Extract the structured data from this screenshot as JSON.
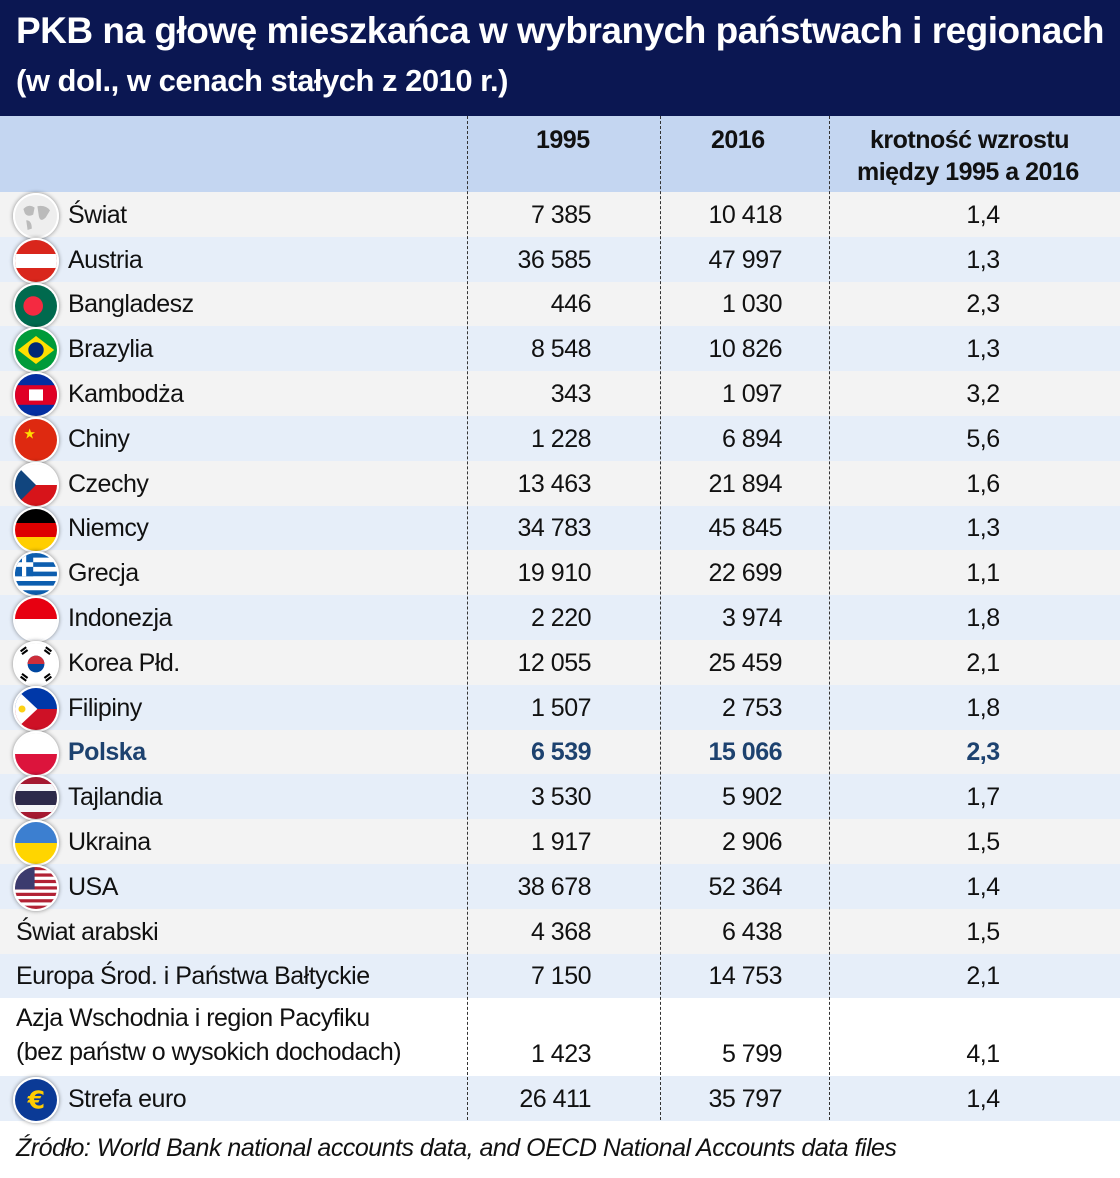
{
  "title": "PKB na głowę mieszkańca w wybranych państwach i regionach",
  "subtitle": "(w dol., w cenach stałych z 2010 r.)",
  "source": "Źródło: World Bank national accounts data, and OECD National Accounts data files",
  "colors": {
    "title_bg": "#0b1752",
    "header_bg": "#c4d6f1",
    "highlight": "#1d426f"
  },
  "chart_data": {
    "type": "table",
    "title": "PKB na głowę mieszkańca w wybranych państwach i regionach",
    "columns": [
      "",
      "1995",
      "2016",
      "krotność wzrostu między 1995 a 2016"
    ],
    "rows": [
      {
        "name": "Świat",
        "icon": "globe-icon",
        "y1995": "7 385",
        "y2016": "10 418",
        "ratio": "1,4"
      },
      {
        "name": "Austria",
        "icon": "flag-austria-icon",
        "y1995": "36 585",
        "y2016": "47 997",
        "ratio": "1,3"
      },
      {
        "name": "Bangladesz",
        "icon": "flag-bangladesh-icon",
        "y1995": "446",
        "y2016": "1 030",
        "ratio": "2,3"
      },
      {
        "name": "Brazylia",
        "icon": "flag-brazil-icon",
        "y1995": "8 548",
        "y2016": "10 826",
        "ratio": "1,3"
      },
      {
        "name": "Kambodża",
        "icon": "flag-cambodia-icon",
        "y1995": "343",
        "y2016": "1 097",
        "ratio": "3,2"
      },
      {
        "name": "Chiny",
        "icon": "flag-china-icon",
        "y1995": "1 228",
        "y2016": "6 894",
        "ratio": "5,6"
      },
      {
        "name": "Czechy",
        "icon": "flag-czechia-icon",
        "y1995": "13 463",
        "y2016": "21 894",
        "ratio": "1,6"
      },
      {
        "name": "Niemcy",
        "icon": "flag-germany-icon",
        "y1995": "34 783",
        "y2016": "45 845",
        "ratio": "1,3"
      },
      {
        "name": "Grecja",
        "icon": "flag-greece-icon",
        "y1995": "19 910",
        "y2016": "22 699",
        "ratio": "1,1"
      },
      {
        "name": "Indonezja",
        "icon": "flag-indonesia-icon",
        "y1995": "2 220",
        "y2016": "3 974",
        "ratio": "1,8"
      },
      {
        "name": "Korea Płd.",
        "icon": "flag-south-korea-icon",
        "y1995": "12 055",
        "y2016": "25 459",
        "ratio": "2,1"
      },
      {
        "name": "Filipiny",
        "icon": "flag-philippines-icon",
        "y1995": "1 507",
        "y2016": "2 753",
        "ratio": "1,8"
      },
      {
        "name": "Polska",
        "icon": "flag-poland-icon",
        "y1995": "6 539",
        "y2016": "15 066",
        "ratio": "2,3",
        "highlight": true
      },
      {
        "name": "Tajlandia",
        "icon": "flag-thailand-icon",
        "y1995": "3 530",
        "y2016": "5 902",
        "ratio": "1,7"
      },
      {
        "name": "Ukraina",
        "icon": "flag-ukraine-icon",
        "y1995": "1 917",
        "y2016": "2 906",
        "ratio": "1,5"
      },
      {
        "name": "USA",
        "icon": "flag-usa-icon",
        "y1995": "38 678",
        "y2016": "52 364",
        "ratio": "1,4"
      },
      {
        "name": "Świat arabski",
        "y1995": "4 368",
        "y2016": "6 438",
        "ratio": "1,5"
      },
      {
        "name": "Europa Środ. i Państwa Bałtyckie",
        "y1995": "7 150",
        "y2016": "14 753",
        "ratio": "2,1"
      },
      {
        "name": "Azja Wschodnia i region Pacyfiku",
        "name2": "(bez państw o wysokich dochodach)",
        "y1995": "1 423",
        "y2016": "5 799",
        "ratio": "4,1"
      },
      {
        "name": "Strefa euro",
        "icon": "euro-icon",
        "y1995": "26 411",
        "y2016": "35 797",
        "ratio": "1,4"
      }
    ]
  },
  "header": {
    "col1": "1995",
    "col2": "2016",
    "col3a": "krotność wzrostu",
    "col3b": "między 1995 a 2016"
  }
}
